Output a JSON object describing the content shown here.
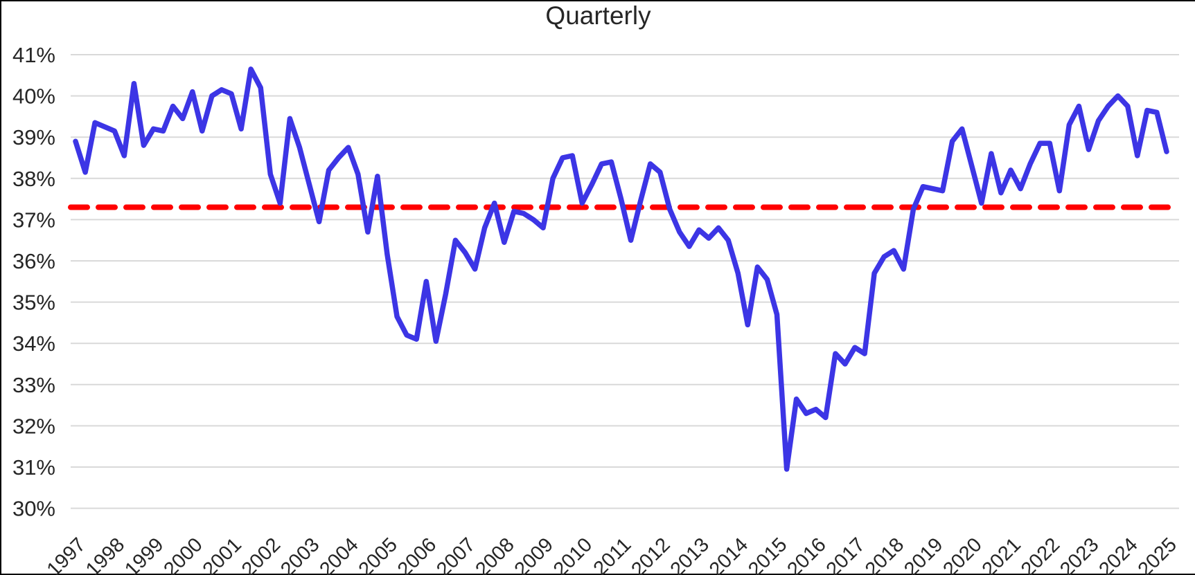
{
  "title": "Quarterly",
  "colors": {
    "series_line": "#3C35E5",
    "average_line": "#FF0000",
    "gridline": "#D9D9D9",
    "tick_text": "#262626",
    "border": "#000000",
    "background": "#FFFFFF"
  },
  "y_axis": {
    "tick_labels": [
      "41%",
      "40%",
      "39%",
      "38%",
      "37%",
      "36%",
      "35%",
      "34%",
      "33%",
      "32%",
      "31%",
      "30%"
    ],
    "tick_values": [
      41,
      40,
      39,
      38,
      37,
      36,
      35,
      34,
      33,
      32,
      31,
      30
    ]
  },
  "x_axis": {
    "tick_labels": [
      "1997",
      "1998",
      "1999",
      "2000",
      "2001",
      "2002",
      "2003",
      "2004",
      "2005",
      "2006",
      "2007",
      "2008",
      "2009",
      "2010",
      "2011",
      "2012",
      "2013",
      "2014",
      "2015",
      "2016",
      "2017",
      "2018",
      "2019",
      "2020",
      "2021",
      "2022",
      "2023",
      "2024",
      "2025"
    ]
  },
  "chart_data": {
    "type": "line",
    "title": "Quarterly",
    "frequency": "quarterly",
    "start_period": "1997 Q1",
    "end_period": "2025 Q1",
    "ylim": [
      30,
      41
    ],
    "ytick_format": "percent",
    "grid": true,
    "legend": false,
    "average_line_value": 37.3,
    "categories_years": [
      1997,
      1998,
      1999,
      2000,
      2001,
      2002,
      2003,
      2004,
      2005,
      2006,
      2007,
      2008,
      2009,
      2010,
      2011,
      2012,
      2013,
      2014,
      2015,
      2016,
      2017,
      2018,
      2019,
      2020,
      2021,
      2022,
      2023,
      2024,
      2025
    ],
    "values": [
      38.9,
      38.15,
      39.35,
      39.25,
      39.15,
      38.55,
      40.3,
      38.8,
      39.2,
      39.15,
      39.75,
      39.45,
      40.1,
      39.15,
      40.0,
      40.15,
      40.05,
      39.2,
      40.65,
      40.2,
      38.1,
      37.4,
      39.45,
      38.75,
      37.85,
      36.95,
      38.2,
      38.5,
      38.75,
      38.1,
      36.7,
      38.05,
      36.15,
      34.65,
      34.2,
      34.1,
      35.5,
      34.05,
      35.2,
      36.5,
      36.2,
      35.8,
      36.8,
      37.4,
      36.45,
      37.2,
      37.15,
      37.0,
      36.8,
      38.0,
      38.5,
      38.55,
      37.4,
      37.85,
      38.35,
      38.4,
      37.5,
      36.5,
      37.45,
      38.35,
      38.15,
      37.25,
      36.7,
      36.35,
      36.75,
      36.55,
      36.8,
      36.5,
      35.7,
      34.45,
      35.85,
      35.55,
      34.7,
      30.95,
      32.65,
      32.3,
      32.4,
      32.2,
      33.75,
      33.5,
      33.9,
      33.75,
      35.7,
      36.1,
      36.25,
      35.8,
      37.25,
      37.8,
      37.75,
      37.7,
      38.9,
      39.2,
      38.3,
      37.4,
      38.6,
      37.65,
      38.2,
      37.75,
      38.35,
      38.85,
      38.85,
      37.7,
      39.3,
      39.75,
      38.7,
      39.4,
      39.75,
      40.0,
      39.75,
      38.55,
      39.65,
      39.6,
      38.65
    ]
  }
}
